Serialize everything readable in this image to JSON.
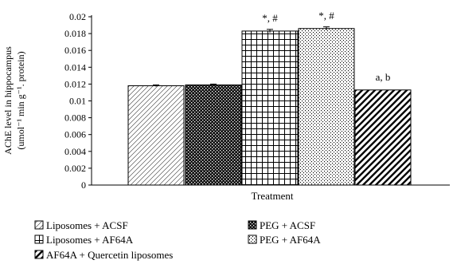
{
  "chart_data": {
    "type": "bar",
    "xlabel": "Treatment",
    "ylabel_lines": [
      "AChE level in hippocampus",
      "(umol⁻¹ min g⁻¹. protein)"
    ],
    "ylim": [
      0,
      0.02
    ],
    "yticks": [
      "0",
      "0.002",
      "0.004",
      "0.006",
      "0.008",
      "0.01",
      "0.012",
      "0.014",
      "0.016",
      "0.018",
      "0.02"
    ],
    "grid": false,
    "legend_position": "bottom",
    "bars": [
      {
        "name": "Liposomes + ACSF",
        "value": 0.0118,
        "error": 0.0001,
        "pattern": "diag-light",
        "annotation": ""
      },
      {
        "name": "PEG + ACSF",
        "value": 0.0119,
        "error": 0.0001,
        "pattern": "checker",
        "annotation": ""
      },
      {
        "name": "Liposomes + AF64A",
        "value": 0.0183,
        "error": 0.0002,
        "pattern": "grid",
        "annotation": "*, #"
      },
      {
        "name": "PEG + AF64A",
        "value": 0.0186,
        "error": 0.0002,
        "pattern": "dots",
        "annotation": "*, #"
      },
      {
        "name": "AF64A + Quercetin liposomes",
        "value": 0.0113,
        "error": 0,
        "pattern": "diag-bold",
        "annotation": "a, b"
      }
    ]
  }
}
